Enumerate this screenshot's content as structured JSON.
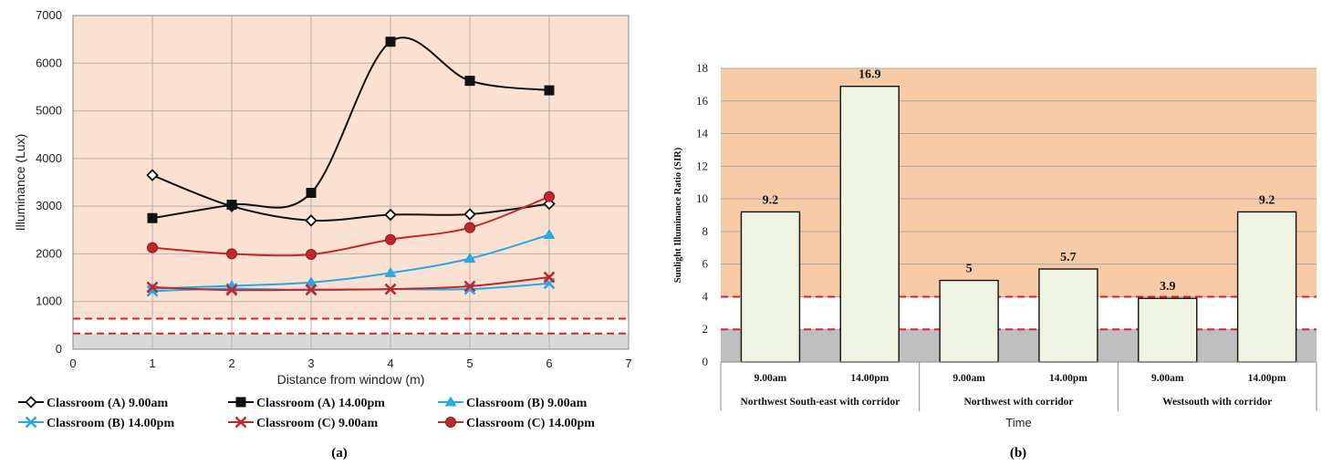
{
  "chart_data": [
    {
      "type": "line",
      "panel_label": "(a)",
      "xlabel": "Distance from window (m)",
      "ylabel": "Illuminance (Lux)",
      "xlim": [
        0,
        7
      ],
      "ylim": [
        0,
        7000
      ],
      "x_ticks": [
        "0",
        "1",
        "2",
        "3",
        "4",
        "5",
        "6",
        "7"
      ],
      "y_ticks": [
        "0",
        "1000",
        "2000",
        "3000",
        "4000",
        "5000",
        "6000",
        "7000"
      ],
      "grid": true,
      "background_bands": [
        {
          "from": 0,
          "to": 330,
          "color": "#d9d9d9"
        },
        {
          "from": 330,
          "to": 640,
          "color": "#ffffff"
        },
        {
          "from": 640,
          "to": 7000,
          "color": "#fbe1d2"
        }
      ],
      "reference_lines": [
        330,
        640
      ],
      "legend_position": "bottom",
      "series": [
        {
          "name": "Classroom (A) 9.00am",
          "x": [
            1,
            2,
            3,
            4,
            5,
            6
          ],
          "values": [
            3650,
            3000,
            2700,
            2820,
            2830,
            3050
          ],
          "color": "#111111",
          "marker": "diamond-open"
        },
        {
          "name": "Classroom (A) 14.00pm",
          "x": [
            1,
            2,
            3,
            4,
            5,
            6
          ],
          "values": [
            2750,
            3030,
            3280,
            6450,
            5630,
            5430
          ],
          "color": "#111111",
          "marker": "square"
        },
        {
          "name": "Classroom (B) 9.00am",
          "x": [
            1,
            2,
            3,
            4,
            5,
            6
          ],
          "values": [
            1270,
            1330,
            1400,
            1600,
            1900,
            2400
          ],
          "color": "#2aa8e0",
          "marker": "triangle"
        },
        {
          "name": "Classroom (B) 14.00pm",
          "x": [
            1,
            2,
            3,
            4,
            5,
            6
          ],
          "values": [
            1220,
            1270,
            1240,
            1260,
            1260,
            1380
          ],
          "color": "#2aa8e0",
          "marker": "x"
        },
        {
          "name": "Classroom (C) 9.00am",
          "x": [
            1,
            2,
            3,
            4,
            5,
            6
          ],
          "values": [
            1300,
            1240,
            1250,
            1260,
            1320,
            1510
          ],
          "color": "#c0282d",
          "marker": "x"
        },
        {
          "name": "Classroom (C) 14.00pm",
          "x": [
            1,
            2,
            3,
            4,
            5,
            6
          ],
          "values": [
            2130,
            2000,
            1990,
            2300,
            2550,
            3200
          ],
          "color": "#c0282d",
          "marker": "circle"
        }
      ]
    },
    {
      "type": "bar",
      "panel_label": "(b)",
      "xlabel": "Time",
      "ylabel": "Sunlight Illuminance Ratio (SIR)",
      "ylim": [
        0,
        18
      ],
      "y_ticks": [
        "0",
        "2",
        "4",
        "6",
        "8",
        "10",
        "12",
        "14",
        "16",
        "18"
      ],
      "grid": true,
      "background_bands": [
        {
          "from": 0,
          "to": 2,
          "color": "#bfbfbf"
        },
        {
          "from": 2,
          "to": 4,
          "color": "#ffffff"
        },
        {
          "from": 4,
          "to": 18,
          "color": "#f8cba7"
        }
      ],
      "reference_lines": [
        2,
        4
      ],
      "bar_color": "#eef3e2",
      "categories": [
        "9.00am",
        "14.00pm",
        "9.00am",
        "14.00pm",
        "9.00am",
        "14.00pm"
      ],
      "groups": [
        "Northwest South-east with corridor",
        "Northwest  with corridor",
        "Westsouth with corridor"
      ],
      "values": [
        9.2,
        16.9,
        5,
        5.7,
        3.9,
        9.2
      ],
      "data_labels": [
        "9.2",
        "16.9",
        "5",
        "5.7",
        "3.9",
        "9.2"
      ]
    }
  ]
}
